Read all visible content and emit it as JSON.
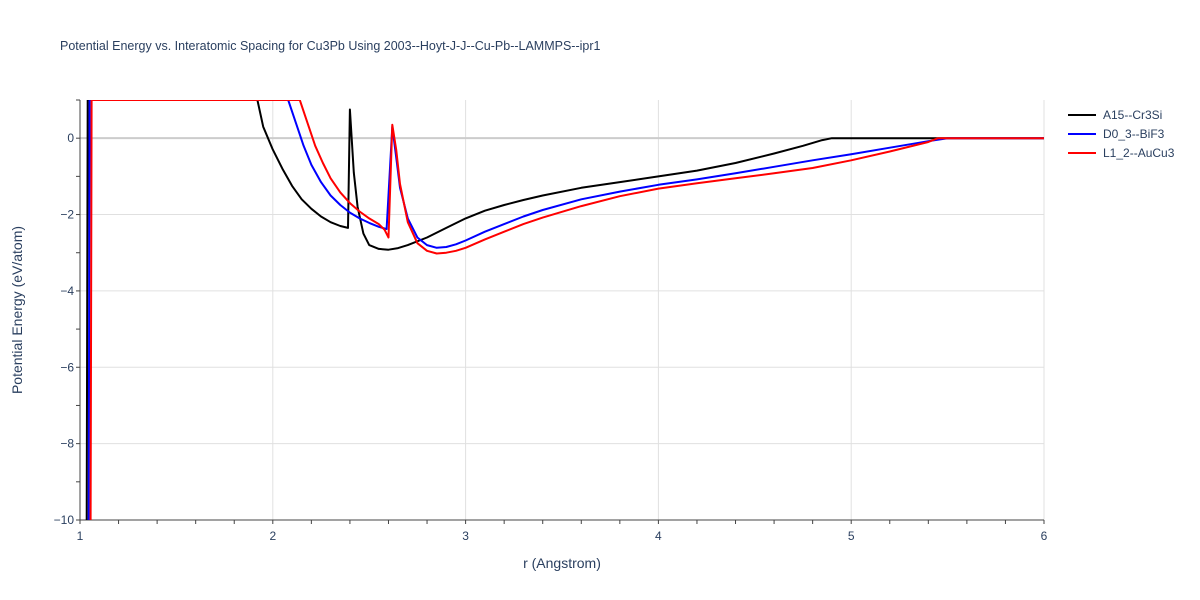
{
  "chart_data": {
    "type": "line",
    "title": "Potential Energy vs. Interatomic Spacing for Cu3Pb Using 2003--Hoyt-J-J--Cu-Pb--LAMMPS--ipr1",
    "xlabel": "r (Angstrom)",
    "ylabel": "Potential Energy (eV/atom)",
    "xlim": [
      1,
      6
    ],
    "ylim": [
      -10,
      1
    ],
    "x_ticks": [
      1,
      2,
      3,
      4,
      5,
      6
    ],
    "x_tick_labels": [
      "1",
      "2",
      "3",
      "4",
      "5",
      "6"
    ],
    "y_ticks": [
      0,
      -2,
      -4,
      -6,
      -8,
      -10
    ],
    "y_tick_labels": [
      "0",
      "−2",
      "−4",
      "−6",
      "−8",
      "−10"
    ],
    "grid": true,
    "legend_position": "top-right",
    "series": [
      {
        "name": "A15--Cr3Si",
        "color": "#000000",
        "points": [
          [
            1.035,
            -10
          ],
          [
            1.04,
            1
          ],
          [
            1.92,
            1
          ],
          [
            1.95,
            0.3
          ],
          [
            2.0,
            -0.3
          ],
          [
            2.05,
            -0.8
          ],
          [
            2.1,
            -1.25
          ],
          [
            2.15,
            -1.6
          ],
          [
            2.2,
            -1.85
          ],
          [
            2.25,
            -2.05
          ],
          [
            2.3,
            -2.2
          ],
          [
            2.35,
            -2.3
          ],
          [
            2.39,
            -2.35
          ],
          [
            2.4,
            0.75
          ],
          [
            2.42,
            -0.9
          ],
          [
            2.44,
            -1.8
          ],
          [
            2.47,
            -2.5
          ],
          [
            2.5,
            -2.8
          ],
          [
            2.55,
            -2.9
          ],
          [
            2.6,
            -2.92
          ],
          [
            2.65,
            -2.88
          ],
          [
            2.7,
            -2.8
          ],
          [
            2.8,
            -2.6
          ],
          [
            2.9,
            -2.35
          ],
          [
            3.0,
            -2.1
          ],
          [
            3.1,
            -1.9
          ],
          [
            3.2,
            -1.75
          ],
          [
            3.3,
            -1.62
          ],
          [
            3.4,
            -1.5
          ],
          [
            3.6,
            -1.3
          ],
          [
            3.8,
            -1.15
          ],
          [
            4.0,
            -1.0
          ],
          [
            4.2,
            -0.85
          ],
          [
            4.4,
            -0.65
          ],
          [
            4.6,
            -0.4
          ],
          [
            4.75,
            -0.2
          ],
          [
            4.85,
            -0.05
          ],
          [
            4.9,
            0.0
          ],
          [
            5.0,
            0.0
          ],
          [
            6.0,
            0.0
          ]
        ]
      },
      {
        "name": "D0_3--BiF3",
        "color": "#0000ff",
        "points": [
          [
            1.045,
            -10
          ],
          [
            1.05,
            1
          ],
          [
            2.08,
            1
          ],
          [
            2.12,
            0.4
          ],
          [
            2.16,
            -0.2
          ],
          [
            2.2,
            -0.7
          ],
          [
            2.25,
            -1.15
          ],
          [
            2.3,
            -1.5
          ],
          [
            2.35,
            -1.75
          ],
          [
            2.4,
            -1.95
          ],
          [
            2.45,
            -2.1
          ],
          [
            2.5,
            -2.22
          ],
          [
            2.55,
            -2.32
          ],
          [
            2.59,
            -2.38
          ],
          [
            2.62,
            0.3
          ],
          [
            2.64,
            -0.5
          ],
          [
            2.66,
            -1.3
          ],
          [
            2.7,
            -2.1
          ],
          [
            2.75,
            -2.6
          ],
          [
            2.8,
            -2.8
          ],
          [
            2.85,
            -2.87
          ],
          [
            2.9,
            -2.85
          ],
          [
            2.95,
            -2.78
          ],
          [
            3.0,
            -2.68
          ],
          [
            3.1,
            -2.45
          ],
          [
            3.2,
            -2.25
          ],
          [
            3.3,
            -2.05
          ],
          [
            3.4,
            -1.88
          ],
          [
            3.6,
            -1.6
          ],
          [
            3.8,
            -1.4
          ],
          [
            4.0,
            -1.22
          ],
          [
            4.2,
            -1.08
          ],
          [
            4.4,
            -0.92
          ],
          [
            4.6,
            -0.75
          ],
          [
            4.8,
            -0.58
          ],
          [
            5.0,
            -0.42
          ],
          [
            5.2,
            -0.25
          ],
          [
            5.4,
            -0.08
          ],
          [
            5.5,
            0.0
          ],
          [
            6.0,
            0.0
          ]
        ]
      },
      {
        "name": "L1_2--AuCu3",
        "color": "#ff0000",
        "points": [
          [
            1.055,
            -10
          ],
          [
            1.06,
            1
          ],
          [
            2.14,
            1
          ],
          [
            2.18,
            0.4
          ],
          [
            2.22,
            -0.2
          ],
          [
            2.26,
            -0.65
          ],
          [
            2.3,
            -1.05
          ],
          [
            2.35,
            -1.42
          ],
          [
            2.4,
            -1.7
          ],
          [
            2.45,
            -1.92
          ],
          [
            2.5,
            -2.1
          ],
          [
            2.55,
            -2.25
          ],
          [
            2.58,
            -2.4
          ],
          [
            2.6,
            -2.6
          ],
          [
            2.62,
            0.35
          ],
          [
            2.64,
            -0.3
          ],
          [
            2.66,
            -1.2
          ],
          [
            2.7,
            -2.2
          ],
          [
            2.75,
            -2.75
          ],
          [
            2.8,
            -2.95
          ],
          [
            2.85,
            -3.02
          ],
          [
            2.9,
            -3.0
          ],
          [
            2.95,
            -2.95
          ],
          [
            3.0,
            -2.87
          ],
          [
            3.1,
            -2.65
          ],
          [
            3.2,
            -2.45
          ],
          [
            3.3,
            -2.25
          ],
          [
            3.4,
            -2.08
          ],
          [
            3.6,
            -1.78
          ],
          [
            3.8,
            -1.52
          ],
          [
            4.0,
            -1.32
          ],
          [
            4.2,
            -1.18
          ],
          [
            4.4,
            -1.05
          ],
          [
            4.6,
            -0.92
          ],
          [
            4.8,
            -0.78
          ],
          [
            5.0,
            -0.58
          ],
          [
            5.2,
            -0.35
          ],
          [
            5.4,
            -0.1
          ],
          [
            5.45,
            0.0
          ],
          [
            6.0,
            0.0
          ]
        ]
      }
    ]
  }
}
